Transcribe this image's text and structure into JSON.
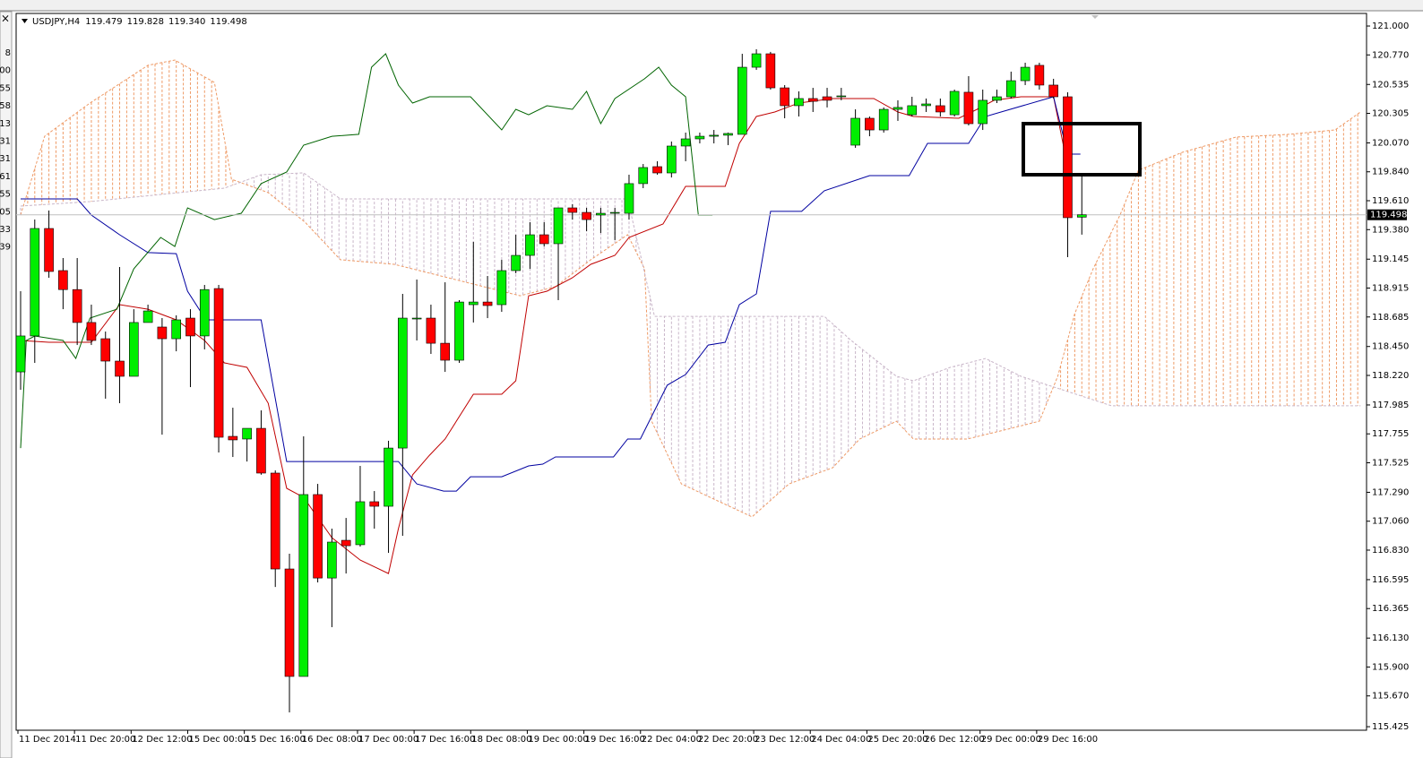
{
  "chart_data": {
    "type": "candlestick",
    "symbol": "USDJPY,H4",
    "categories": [
      "11 Dec 2014",
      null,
      null,
      null,
      "11 Dec 20:00",
      null,
      null,
      null,
      "12 Dec 12:00",
      null,
      null,
      null,
      "15 Dec 00:00",
      null,
      null,
      null,
      "15 Dec 16:00",
      null,
      null,
      null,
      "16 Dec 08:00",
      null,
      null,
      null,
      "17 Dec 00:00",
      null,
      null,
      null,
      "17 Dec 16:00",
      null,
      null,
      null,
      "18 Dec 08:00",
      null,
      null,
      null,
      "19 Dec 00:00",
      null,
      null,
      null,
      "19 Dec 16:00",
      null,
      null,
      null,
      "22 Dec 04:00",
      null,
      null,
      null,
      "22 Dec 20:00",
      null,
      null,
      null,
      "23 Dec 12:00",
      null,
      null,
      null,
      "24 Dec 04:00",
      null,
      null,
      null,
      "25 Dec 20:00",
      null,
      null,
      null,
      "26 Dec 12:00",
      null,
      null,
      null,
      "29 Dec 00:00",
      null,
      null,
      null,
      "29 Dec 16:00",
      null,
      null,
      null
    ],
    "open": [
      118.248,
      118.534,
      119.389,
      119.054,
      118.903,
      118.641,
      118.512,
      118.334,
      118.213,
      118.641,
      118.605,
      118.512,
      118.676,
      118.534,
      118.911,
      117.735,
      117.714,
      117.799,
      117.443,
      116.68,
      115.825,
      117.272,
      116.608,
      116.908,
      116.873,
      117.215,
      117.179,
      117.642,
      118.669,
      118.676,
      118.476,
      118.341,
      118.783,
      118.804,
      118.783,
      119.054,
      119.175,
      119.339,
      119.268,
      119.553,
      119.517,
      119.496,
      119.51,
      119.51,
      119.746,
      119.881,
      119.831,
      120.045,
      120.102,
      120.123,
      120.131,
      120.138,
      120.672,
      120.779,
      120.508,
      120.366,
      120.423,
      120.437,
      120.437,
      120.052,
      120.266,
      120.173,
      120.337,
      120.294,
      120.366,
      120.366,
      120.294,
      120.473,
      120.223,
      120.409,
      120.437,
      120.565,
      120.687,
      120.53,
      120.437,
      119.479
    ],
    "high": [
      118.89,
      119.46,
      119.532,
      119.154,
      119.154,
      118.783,
      118.569,
      119.083,
      118.747,
      118.783,
      118.676,
      118.698,
      118.747,
      118.94,
      118.94,
      117.963,
      117.799,
      117.942,
      117.464,
      116.801,
      117.735,
      117.357,
      117.001,
      117.086,
      117.5,
      117.3,
      117.7,
      118.869,
      118.983,
      118.783,
      118.961,
      118.819,
      119.282,
      119.011,
      119.14,
      119.339,
      119.439,
      119.439,
      119.553,
      119.582,
      119.553,
      119.553,
      119.553,
      119.817,
      119.902,
      119.924,
      120.081,
      120.152,
      120.152,
      120.173,
      120.152,
      120.779,
      120.815,
      120.794,
      120.53,
      120.48,
      120.508,
      120.508,
      120.508,
      120.337,
      120.28,
      120.352,
      120.409,
      120.437,
      120.423,
      120.423,
      120.494,
      120.601,
      120.494,
      120.494,
      120.637,
      120.708,
      120.708,
      120.58,
      120.473,
      119.828
    ],
    "low": [
      118.106,
      118.32,
      118.997,
      118.747,
      118.462,
      118.462,
      118.035,
      117.999,
      118.213,
      118.641,
      117.749,
      118.412,
      118.127,
      118.427,
      117.607,
      117.571,
      117.535,
      117.43,
      116.537,
      115.539,
      115.825,
      116.573,
      116.217,
      116.644,
      116.858,
      117.001,
      116.808,
      116.944,
      118.498,
      118.391,
      118.248,
      118.32,
      118.641,
      118.676,
      118.726,
      119.033,
      119.068,
      119.246,
      118.819,
      119.46,
      119.368,
      119.353,
      119.296,
      119.46,
      119.71,
      119.817,
      119.795,
      119.924,
      120.066,
      120.066,
      120.052,
      120.138,
      120.651,
      120.494,
      120.266,
      120.28,
      120.316,
      120.352,
      120.409,
      120.031,
      120.123,
      120.152,
      120.245,
      120.28,
      120.316,
      120.28,
      120.28,
      120.209,
      120.173,
      120.387,
      120.423,
      120.53,
      120.494,
      120.423,
      119.161,
      119.34
    ],
    "low_labels": [
      null,
      null,
      null,
      null,
      null,
      null,
      null,
      null,
      null,
      null,
      null,
      null,
      null,
      null,
      null,
      null,
      null,
      null,
      null,
      null,
      null,
      null,
      null,
      null,
      null,
      null,
      null,
      null,
      null,
      null,
      null,
      null,
      null,
      null,
      null,
      null,
      null,
      null,
      null,
      null,
      null,
      null,
      null,
      null,
      null,
      null,
      null,
      null,
      null,
      null,
      null,
      null,
      null,
      null,
      null,
      null,
      null,
      null,
      null,
      null,
      null,
      null,
      null,
      null,
      null,
      null,
      null,
      null,
      null,
      null,
      null,
      null,
      null,
      null,
      null,
      "119.340"
    ],
    "close": [
      118.534,
      119.389,
      119.047,
      118.903,
      118.641,
      118.498,
      118.334,
      118.213,
      118.641,
      118.733,
      118.512,
      118.662,
      118.534,
      118.903,
      117.728,
      117.707,
      117.799,
      117.443,
      116.68,
      115.825,
      117.272,
      116.608,
      116.894,
      116.865,
      117.215,
      117.179,
      117.642,
      118.676,
      118.676,
      118.476,
      118.341,
      118.804,
      118.804,
      118.776,
      119.054,
      119.175,
      119.339,
      119.268,
      119.553,
      119.517,
      119.46,
      119.51,
      119.517,
      119.746,
      119.874,
      119.831,
      120.045,
      120.102,
      120.123,
      120.131,
      120.145,
      120.672,
      120.779,
      120.508,
      120.366,
      120.423,
      120.401,
      120.409,
      120.444,
      120.266,
      120.173,
      120.337,
      120.352,
      120.366,
      120.38,
      120.316,
      120.48,
      120.223,
      120.409,
      120.437,
      120.565,
      120.672,
      120.53,
      120.437,
      119.475,
      119.498
    ],
    "up_color": "#00ee00",
    "down_color": "#ff0000",
    "ylim": [
      115.397,
      121.1
    ],
    "yticks": [
      {
        "value": 121.0,
        "label": "121.000"
      },
      {
        "value": 120.77,
        "label": "120.770"
      },
      120.535,
      120.305,
      {
        "value": 120.07,
        "label": "120.070"
      },
      {
        "value": 119.84,
        "label": "119.840"
      },
      {
        "value": 119.61,
        "label": "119.610"
      },
      {
        "value": 119.38,
        "label": "119.380"
      },
      119.145,
      118.915,
      118.685,
      {
        "value": 118.45,
        "label": "118.450"
      },
      {
        "value": 118.22,
        "label": "118.220"
      },
      117.985,
      117.755,
      117.525,
      {
        "value": 117.29,
        "label": "117.290"
      },
      {
        "value": 117.06,
        "label": "117.060"
      },
      {
        "value": 116.83,
        "label": "116.830"
      },
      116.595,
      116.365,
      {
        "value": 116.13,
        "label": "116.130"
      },
      {
        "value": 115.9,
        "label": "115.900"
      },
      {
        "value": 115.67,
        "label": "115.670"
      },
      115.425
    ],
    "grid": false,
    "cloud": {
      "span_a": {
        "color": "#ee9a66",
        "x": [
          0,
          1.7,
          4.9,
          9,
          10.9,
          13.7,
          14.9,
          17.5,
          20.1,
          22.6,
          26.4,
          31.5,
          35.3,
          37.8,
          40.3,
          42.9,
          44.1,
          44.6,
          46.7,
          51.7,
          54.3,
          57.4,
          59.3,
          61.9,
          63.1,
          66.9,
          69.5,
          72,
          73.3,
          74.5,
          75.8,
          77.7,
          79,
          82.1,
          85.9,
          89.7,
          92.9,
          94.7
        ],
        "values": [
          119.496,
          120.123,
          120.387,
          120.687,
          120.729,
          120.551,
          119.781,
          119.674,
          119.439,
          119.14,
          119.104,
          118.961,
          118.854,
          118.926,
          119.14,
          119.339,
          119.068,
          117.856,
          117.357,
          117.094,
          117.357,
          117.486,
          117.714,
          117.856,
          117.714,
          117.714,
          117.785,
          117.856,
          118.213,
          118.712,
          119.068,
          119.496,
          119.852,
          119.995,
          120.116,
          120.138,
          120.173,
          120.316
        ]
      },
      "span_b": {
        "color": "#c9b6c9",
        "x": [
          0,
          4.9,
          14.4,
          17,
          20,
          22.6,
          42.9,
          44.8,
          56.8,
          58.7,
          61.9,
          63.1,
          65.7,
          68.2,
          70.7,
          77.1,
          94.7
        ],
        "values": [
          119.567,
          119.603,
          119.71,
          119.817,
          119.831,
          119.624,
          119.624,
          118.69,
          118.69,
          118.498,
          118.213,
          118.177,
          118.284,
          118.355,
          118.213,
          117.978,
          117.978
        ]
      }
    },
    "lines": [
      {
        "color": "#c00000",
        "x": [
          0,
          2,
          5,
          7,
          9,
          11,
          13,
          14.4,
          16,
          17.5,
          18.8,
          20,
          22,
          24,
          26,
          26.7,
          27.7,
          28.9,
          30,
          32,
          34,
          35,
          35.9,
          37.2,
          39,
          40.3,
          42,
          43,
          45.4,
          47,
          49.8,
          50.8,
          52,
          53.3,
          55,
          57.4,
          60.3,
          62,
          63.1,
          66.3,
          67.6,
          68.8,
          70.7,
          73,
          73.9
        ],
        "values": [
          118.498,
          118.484,
          118.484,
          118.783,
          118.747,
          118.662,
          118.498,
          118.32,
          118.284,
          117.999,
          117.322,
          117.25,
          116.929,
          116.751,
          116.644,
          117.001,
          117.429,
          117.585,
          117.714,
          118.07,
          118.07,
          118.177,
          118.854,
          118.89,
          118.997,
          119.104,
          119.175,
          119.318,
          119.425,
          119.724,
          119.724,
          120.066,
          120.28,
          120.316,
          120.387,
          120.423,
          120.423,
          120.316,
          120.28,
          120.266,
          120.337,
          120.409,
          120.437,
          120.437,
          119.938
        ]
      },
      {
        "color": "#0000a0",
        "x": [
          0,
          4,
          5,
          7,
          9,
          11,
          11.8,
          13.1,
          17,
          18.8,
          26.7,
          28,
          29.9,
          30.8,
          31.8,
          34,
          35.9,
          36.9,
          37.8,
          41.9,
          42.9,
          43.8,
          45.7,
          47,
          48.6,
          49.8,
          50.8,
          52,
          53,
          55.2,
          56.8,
          60,
          62.8,
          64.1,
          67,
          68.2,
          73,
          74,
          74.9
        ],
        "values": [
          119.624,
          119.624,
          119.496,
          119.339,
          119.197,
          119.189,
          118.89,
          118.662,
          118.662,
          117.535,
          117.535,
          117.357,
          117.3,
          117.3,
          117.414,
          117.414,
          117.5,
          117.514,
          117.571,
          117.571,
          117.714,
          117.714,
          118.142,
          118.227,
          118.462,
          118.484,
          118.783,
          118.869,
          119.525,
          119.525,
          119.689,
          119.81,
          119.81,
          120.066,
          120.066,
          120.28,
          120.437,
          119.981,
          119.981
        ]
      },
      {
        "color": "#006400",
        "x": [
          0,
          0.4,
          1,
          3,
          3.9,
          4.9,
          6.8,
          8,
          9.9,
          10.9,
          11.8,
          13.7,
          15.6,
          17,
          18.8,
          20,
          22,
          23.9,
          24.8,
          25.8,
          26.7,
          27.7,
          28.9,
          31.8,
          34,
          35,
          35.9,
          37.2,
          39,
          40,
          41,
          42,
          44.1,
          45.1,
          46,
          47,
          47.9,
          48.9
        ],
        "values": [
          117.642,
          118.498,
          118.534,
          118.498,
          118.355,
          118.676,
          118.747,
          119.068,
          119.318,
          119.246,
          119.553,
          119.46,
          119.51,
          119.746,
          119.838,
          120.052,
          120.123,
          120.138,
          120.672,
          120.779,
          120.53,
          120.387,
          120.437,
          120.437,
          120.173,
          120.337,
          120.294,
          120.366,
          120.337,
          120.48,
          120.223,
          120.423,
          120.58,
          120.672,
          120.53,
          120.437,
          119.496,
          119.496
        ]
      }
    ]
  },
  "side_panel": {
    "close": "×",
    "items": [
      "8",
      "00",
      "55",
      "58",
      "13",
      "31",
      "31",
      "61",
      "55",
      "05",
      "33",
      "39"
    ]
  }
}
